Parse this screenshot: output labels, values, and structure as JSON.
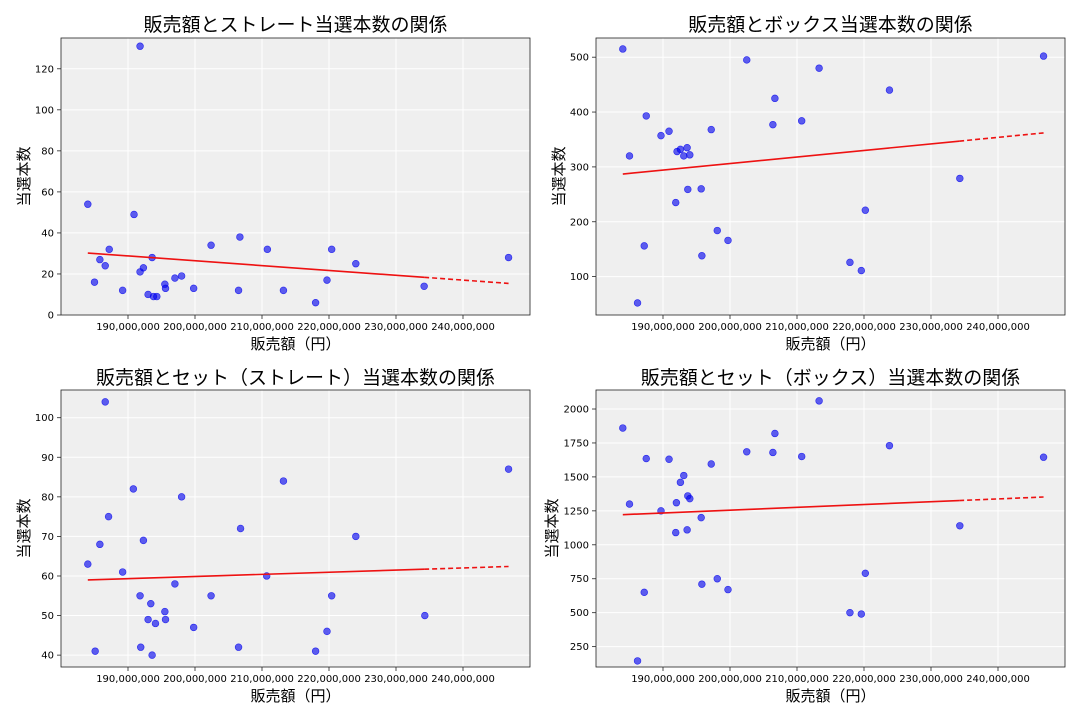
{
  "chart_data": [
    {
      "type": "scatter",
      "title": "販売額とストレート当選本数の関係",
      "xlabel": "販売額（円）",
      "ylabel": "当選本数",
      "xlim": [
        180000000,
        250000000
      ],
      "ylim": [
        0,
        135
      ],
      "xticks": [
        190000000,
        200000000,
        210000000,
        220000000,
        230000000,
        240000000
      ],
      "xtick_labels": [
        "190,000,000",
        "200,000,000",
        "210,000,000",
        "220,000,000",
        "230,000,000",
        "240,000,000"
      ],
      "yticks": [
        0,
        20,
        40,
        60,
        80,
        100,
        120
      ],
      "ytick_labels": [
        "0",
        "20",
        "40",
        "60",
        "80",
        "100",
        "120"
      ],
      "grid": true,
      "points": [
        [
          184000000,
          54
        ],
        [
          185000000,
          16
        ],
        [
          185800000,
          27
        ],
        [
          186600000,
          24
        ],
        [
          187200000,
          32
        ],
        [
          189200000,
          12
        ],
        [
          190900000,
          49
        ],
        [
          191800000,
          131
        ],
        [
          191800000,
          21
        ],
        [
          192300000,
          23
        ],
        [
          193000000,
          10
        ],
        [
          193600000,
          28
        ],
        [
          193800000,
          9
        ],
        [
          194300000,
          9
        ],
        [
          195500000,
          15
        ],
        [
          195600000,
          13
        ],
        [
          197000000,
          18
        ],
        [
          198000000,
          19
        ],
        [
          199800000,
          13
        ],
        [
          202400000,
          34
        ],
        [
          206500000,
          12
        ],
        [
          206700000,
          38
        ],
        [
          210800000,
          32
        ],
        [
          213200000,
          12
        ],
        [
          218000000,
          6
        ],
        [
          219700000,
          17
        ],
        [
          220400000,
          32
        ],
        [
          224000000,
          25
        ],
        [
          234200000,
          14
        ],
        [
          246800000,
          28
        ]
      ],
      "trend": {
        "x": [
          184000000,
          246800000
        ],
        "y": [
          30.2,
          15.4
        ],
        "solid_until": 234200000
      }
    },
    {
      "type": "scatter",
      "title": "販売額とボックス当選本数の関係",
      "xlabel": "販売額（円）",
      "ylabel": "当選本数",
      "xlim": [
        180000000,
        250000000
      ],
      "ylim": [
        30,
        535
      ],
      "xticks": [
        190000000,
        200000000,
        210000000,
        220000000,
        230000000,
        240000000
      ],
      "xtick_labels": [
        "190,000,000",
        "200,000,000",
        "210,000,000",
        "220,000,000",
        "230,000,000",
        "240,000,000"
      ],
      "yticks": [
        100,
        200,
        300,
        400,
        500
      ],
      "ytick_labels": [
        "100",
        "200",
        "300",
        "400",
        "500"
      ],
      "grid": true,
      "points": [
        [
          184000000,
          515
        ],
        [
          185000000,
          320
        ],
        [
          186200000,
          52
        ],
        [
          187200000,
          156
        ],
        [
          187500000,
          393
        ],
        [
          189700000,
          357
        ],
        [
          190900000,
          365
        ],
        [
          191900000,
          235
        ],
        [
          192100000,
          328
        ],
        [
          192600000,
          332
        ],
        [
          193100000,
          320
        ],
        [
          193600000,
          335
        ],
        [
          193700000,
          259
        ],
        [
          194000000,
          322
        ],
        [
          195700000,
          260
        ],
        [
          195800000,
          138
        ],
        [
          197200000,
          368
        ],
        [
          198100000,
          184
        ],
        [
          199700000,
          166
        ],
        [
          202500000,
          495
        ],
        [
          206400000,
          377
        ],
        [
          206700000,
          425
        ],
        [
          210700000,
          384
        ],
        [
          213300000,
          480
        ],
        [
          217900000,
          126
        ],
        [
          219600000,
          111
        ],
        [
          220200000,
          221
        ],
        [
          223800000,
          440
        ],
        [
          234300000,
          279
        ],
        [
          246800000,
          502
        ]
      ],
      "trend": {
        "x": [
          184000000,
          246800000
        ],
        "y": [
          287,
          362
        ],
        "solid_until": 234200000
      }
    },
    {
      "type": "scatter",
      "title": "販売額とセット（ストレート）当選本数の関係",
      "xlabel": "販売額（円）",
      "ylabel": "当選本数",
      "xlim": [
        180000000,
        250000000
      ],
      "ylim": [
        37,
        107
      ],
      "xticks": [
        190000000,
        200000000,
        210000000,
        220000000,
        230000000,
        240000000
      ],
      "xtick_labels": [
        "190,000,000",
        "200,000,000",
        "210,000,000",
        "220,000,000",
        "230,000,000",
        "240,000,000"
      ],
      "yticks": [
        40,
        50,
        60,
        70,
        80,
        90,
        100
      ],
      "ytick_labels": [
        "40",
        "50",
        "60",
        "70",
        "80",
        "90",
        "100"
      ],
      "grid": true,
      "points": [
        [
          184000000,
          63
        ],
        [
          185100000,
          41
        ],
        [
          185800000,
          68
        ],
        [
          186600000,
          104
        ],
        [
          187100000,
          75
        ],
        [
          189200000,
          61
        ],
        [
          190800000,
          82
        ],
        [
          191800000,
          55
        ],
        [
          191900000,
          42
        ],
        [
          192300000,
          69
        ],
        [
          193000000,
          49
        ],
        [
          193400000,
          53
        ],
        [
          193600000,
          40
        ],
        [
          194100000,
          48
        ],
        [
          195500000,
          51
        ],
        [
          195600000,
          49
        ],
        [
          197000000,
          58
        ],
        [
          198000000,
          80
        ],
        [
          199800000,
          47
        ],
        [
          202400000,
          55
        ],
        [
          206500000,
          42
        ],
        [
          206800000,
          72
        ],
        [
          210700000,
          60
        ],
        [
          213200000,
          84
        ],
        [
          218000000,
          41
        ],
        [
          219700000,
          46
        ],
        [
          220400000,
          55
        ],
        [
          224000000,
          70
        ],
        [
          234300000,
          50
        ],
        [
          246800000,
          87
        ]
      ],
      "trend": {
        "x": [
          184000000,
          246800000
        ],
        "y": [
          59.0,
          62.4
        ],
        "solid_until": 234200000
      }
    },
    {
      "type": "scatter",
      "title": "販売額とセット（ボックス）当選本数の関係",
      "xlabel": "販売額（円）",
      "ylabel": "当選本数",
      "xlim": [
        180000000,
        250000000
      ],
      "ylim": [
        100,
        2140
      ],
      "xticks": [
        190000000,
        200000000,
        210000000,
        220000000,
        230000000,
        240000000
      ],
      "xtick_labels": [
        "190,000,000",
        "200,000,000",
        "210,000,000",
        "220,000,000",
        "230,000,000",
        "240,000,000"
      ],
      "yticks": [
        250,
        500,
        750,
        1000,
        1250,
        1500,
        1750,
        2000
      ],
      "ytick_labels": [
        "250",
        "500",
        "750",
        "1000",
        "1250",
        "1500",
        "1750",
        "2000"
      ],
      "grid": true,
      "points": [
        [
          184000000,
          1860
        ],
        [
          185000000,
          1300
        ],
        [
          186200000,
          145
        ],
        [
          187200000,
          650
        ],
        [
          187500000,
          1635
        ],
        [
          189700000,
          1250
        ],
        [
          190900000,
          1630
        ],
        [
          191900000,
          1090
        ],
        [
          192000000,
          1310
        ],
        [
          192600000,
          1460
        ],
        [
          193100000,
          1510
        ],
        [
          193600000,
          1110
        ],
        [
          193700000,
          1360
        ],
        [
          194000000,
          1340
        ],
        [
          195700000,
          1200
        ],
        [
          195800000,
          710
        ],
        [
          197200000,
          1595
        ],
        [
          198100000,
          750
        ],
        [
          199700000,
          670
        ],
        [
          202500000,
          1685
        ],
        [
          206400000,
          1680
        ],
        [
          206700000,
          1820
        ],
        [
          210700000,
          1650
        ],
        [
          213300000,
          2060
        ],
        [
          217900000,
          500
        ],
        [
          219600000,
          490
        ],
        [
          220200000,
          790
        ],
        [
          223800000,
          1730
        ],
        [
          234300000,
          1140
        ],
        [
          246800000,
          1645
        ]
      ],
      "trend": {
        "x": [
          184000000,
          246800000
        ],
        "y": [
          1222,
          1352
        ],
        "solid_until": 234200000
      }
    }
  ],
  "colors": {
    "point": "#0000ee",
    "trend": "#ee1111",
    "plot_bg": "#efefef",
    "grid": "#ffffff"
  }
}
